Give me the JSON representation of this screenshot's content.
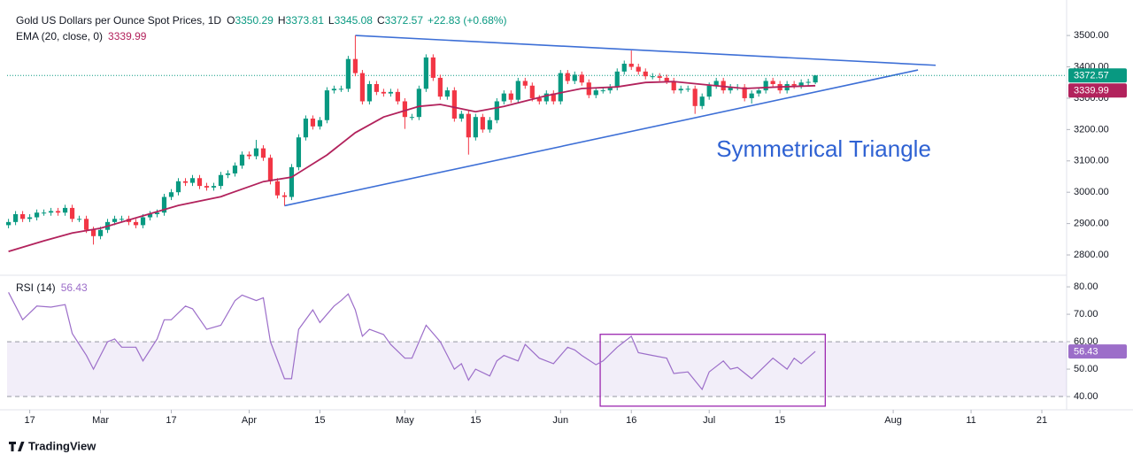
{
  "brand": "TradingView",
  "chart_data": [
    {
      "type": "candlestick",
      "title": "Gold US Dollars per Ounce Spot Prices, 1D",
      "ohlc_prefixes": [
        "O",
        "H",
        "L",
        "C"
      ],
      "change": "+22.83 (+0.68%)",
      "up_color": "#089981",
      "down_color": "#f23645",
      "x": [
        -3,
        -2,
        -1,
        0,
        1,
        2,
        3,
        4,
        5,
        6,
        7,
        8,
        9,
        10,
        11,
        12,
        13,
        14,
        15,
        16,
        17,
        18,
        19,
        20,
        21,
        22,
        23,
        24,
        25,
        26,
        27,
        28,
        29,
        30,
        31,
        32,
        33,
        34,
        35,
        36,
        37,
        38,
        39,
        40,
        41,
        42,
        43,
        44,
        45,
        46,
        47,
        48,
        49,
        50,
        51,
        52,
        53,
        54,
        55,
        56,
        57,
        58,
        59,
        60,
        61,
        62,
        63,
        64,
        65,
        66,
        67,
        68,
        69,
        70,
        71,
        72,
        73,
        74,
        75,
        76,
        77,
        78,
        79,
        80,
        81,
        82,
        83,
        84,
        85,
        86,
        87,
        88,
        89,
        90,
        91,
        92,
        93,
        94,
        95,
        96,
        97,
        98,
        99,
        100,
        101,
        102,
        103,
        104,
        105,
        106,
        107,
        108,
        109,
        110,
        111
      ],
      "open": [
        2895,
        2905,
        2930,
        2915,
        2920,
        2935,
        2935,
        2940,
        2935,
        2950,
        2915,
        2915,
        2880,
        2860,
        2880,
        2905,
        2915,
        2915,
        2905,
        2895,
        2920,
        2930,
        2935,
        2985,
        3000,
        3035,
        3030,
        3045,
        3020,
        3015,
        3020,
        3055,
        3060,
        3085,
        3120,
        3115,
        3140,
        3110,
        3035,
        2990,
        2985,
        3080,
        3175,
        3235,
        3210,
        3230,
        3325,
        3330,
        3330,
        3425,
        3380,
        3290,
        3345,
        3320,
        3315,
        3320,
        3290,
        3240,
        3240,
        3330,
        3430,
        3365,
        3305,
        3325,
        3235,
        3250,
        3175,
        3240,
        3200,
        3230,
        3290,
        3315,
        3295,
        3355,
        3340,
        3300,
        3290,
        3315,
        3290,
        3380,
        3355,
        3375,
        3350,
        3310,
        3325,
        3325,
        3335,
        3385,
        3410,
        3400,
        3385,
        3370,
        3370,
        3365,
        3355,
        3325,
        3330,
        3330,
        3275,
        3305,
        3340,
        3355,
        3325,
        3335,
        3335,
        3300,
        3315,
        3325,
        3355,
        3345,
        3325,
        3345,
        3340,
        3350,
        3350.29
      ],
      "high": [
        2915,
        2940,
        2940,
        2930,
        2945,
        2945,
        2950,
        2950,
        2960,
        2960,
        2925,
        2925,
        2890,
        2890,
        2915,
        2925,
        2925,
        2925,
        2915,
        2930,
        2940,
        2945,
        2995,
        3010,
        3045,
        3045,
        3055,
        3055,
        3030,
        3030,
        3065,
        3070,
        3095,
        3130,
        3130,
        3167,
        3150,
        3120,
        3045,
        3000,
        3090,
        3185,
        3245,
        3245,
        3240,
        3335,
        3340,
        3340,
        3435,
        3500,
        3390,
        3355,
        3355,
        3330,
        3330,
        3330,
        3300,
        3250,
        3340,
        3440,
        3440,
        3375,
        3335,
        3335,
        3260,
        3260,
        3250,
        3250,
        3240,
        3300,
        3325,
        3325,
        3365,
        3365,
        3350,
        3310,
        3325,
        3325,
        3390,
        3390,
        3385,
        3385,
        3360,
        3335,
        3335,
        3345,
        3395,
        3420,
        3452,
        3410,
        3395,
        3380,
        3380,
        3375,
        3365,
        3340,
        3340,
        3340,
        3315,
        3350,
        3365,
        3365,
        3345,
        3345,
        3345,
        3325,
        3335,
        3365,
        3365,
        3355,
        3355,
        3355,
        3360,
        3362,
        3373.81
      ],
      "low": [
        2885,
        2895,
        2905,
        2905,
        2910,
        2925,
        2925,
        2925,
        2925,
        2905,
        2905,
        2870,
        2833,
        2850,
        2870,
        2895,
        2905,
        2895,
        2885,
        2885,
        2910,
        2920,
        2925,
        2975,
        2990,
        3020,
        3020,
        3010,
        3005,
        3005,
        3010,
        3045,
        3050,
        3075,
        3105,
        3105,
        3100,
        3025,
        2980,
        2957,
        2975,
        3070,
        3165,
        3200,
        3200,
        3220,
        3315,
        3320,
        3320,
        3370,
        3280,
        3280,
        3310,
        3305,
        3305,
        3280,
        3202,
        3230,
        3230,
        3320,
        3355,
        3295,
        3295,
        3225,
        3225,
        3120,
        3165,
        3190,
        3190,
        3220,
        3280,
        3285,
        3285,
        3330,
        3290,
        3280,
        3280,
        3280,
        3280,
        3345,
        3345,
        3340,
        3300,
        3300,
        3315,
        3315,
        3325,
        3375,
        3390,
        3375,
        3360,
        3360,
        3355,
        3345,
        3315,
        3315,
        3320,
        3250,
        3265,
        3295,
        3330,
        3315,
        3315,
        3325,
        3290,
        3283,
        3305,
        3315,
        3335,
        3315,
        3315,
        3330,
        3330,
        3340,
        3345.08
      ],
      "close": [
        2905,
        2930,
        2915,
        2920,
        2935,
        2935,
        2940,
        2935,
        2950,
        2915,
        2915,
        2880,
        2860,
        2880,
        2905,
        2915,
        2915,
        2905,
        2895,
        2920,
        2930,
        2935,
        2985,
        3000,
        3035,
        3030,
        3045,
        3020,
        3015,
        3020,
        3055,
        3060,
        3085,
        3120,
        3115,
        3140,
        3110,
        3035,
        2990,
        2985,
        3080,
        3175,
        3235,
        3210,
        3230,
        3325,
        3330,
        3330,
        3425,
        3380,
        3290,
        3345,
        3320,
        3315,
        3320,
        3290,
        3240,
        3240,
        3330,
        3430,
        3365,
        3305,
        3325,
        3235,
        3250,
        3175,
        3240,
        3200,
        3230,
        3290,
        3315,
        3295,
        3355,
        3340,
        3300,
        3290,
        3315,
        3290,
        3380,
        3355,
        3375,
        3350,
        3310,
        3325,
        3325,
        3335,
        3385,
        3410,
        3400,
        3385,
        3370,
        3370,
        3365,
        3355,
        3325,
        3330,
        3330,
        3275,
        3305,
        3340,
        3355,
        3325,
        3335,
        3335,
        3300,
        3315,
        3325,
        3355,
        3345,
        3325,
        3345,
        3340,
        3350,
        3352,
        3372.57
      ],
      "overlay": {
        "name": "EMA (20, close, 0)",
        "color": "#b2225c",
        "x": [
          -3,
          2,
          6,
          10,
          21,
          27,
          33,
          37,
          42,
          46,
          50,
          55,
          58,
          63,
          67,
          73,
          78,
          83,
          87,
          91,
          96,
          101,
          106,
          111
        ],
        "values": [
          2811,
          2845,
          2870,
          2885,
          2958,
          2986,
          3034,
          3048,
          3119,
          3190,
          3240,
          3274,
          3280,
          3257,
          3274,
          3308,
          3331,
          3336,
          3350,
          3353,
          3342,
          3331,
          3336,
          3339.99
        ]
      },
      "xlim": [
        -3.2,
        146.5
      ],
      "ylim": [
        2738,
        3585
      ],
      "yticks": [
        {
          "value": 2800,
          "label": "2800.00"
        },
        {
          "value": 2900,
          "label": "2900.00"
        },
        {
          "value": 3000,
          "label": "3000.00"
        },
        {
          "value": 3100,
          "label": "3100.00"
        },
        {
          "value": 3200,
          "label": "3200.00"
        },
        {
          "value": 3300,
          "label": "3300.00"
        },
        {
          "value": 3400,
          "label": "3400.00"
        },
        {
          "value": 3500,
          "label": "3500.00"
        }
      ],
      "grid": false,
      "annotations": [
        {
          "type": "line",
          "color": "#3d6fd6",
          "x": [
            46,
            128
          ],
          "y": [
            3500,
            3405
          ]
        },
        {
          "type": "line",
          "color": "#3d6fd6",
          "x": [
            36,
            125.5
          ],
          "y": [
            2957,
            3390
          ]
        },
        {
          "type": "text",
          "color": "#2f62d3",
          "text": "Symmetrical Triangle",
          "x": 97,
          "y": 3133
        }
      ]
    },
    {
      "type": "line",
      "series": [
        {
          "name": "RSI (14)",
          "color": "#9c6ec9",
          "x": [
            -3,
            -1,
            1,
            3,
            5,
            6,
            8,
            9,
            11,
            12,
            13,
            15,
            16,
            18,
            19,
            20,
            22,
            23,
            25,
            27,
            29,
            30,
            32,
            33,
            34,
            36,
            37,
            38,
            40,
            41,
            43,
            44,
            45,
            46,
            47,
            48,
            50,
            51,
            53,
            54,
            56,
            58,
            59,
            60,
            61,
            62,
            63,
            65,
            66,
            67,
            69,
            70,
            72,
            74,
            76,
            77,
            78,
            80,
            81,
            83,
            85,
            86,
            88,
            90,
            91,
            93,
            95,
            96,
            98,
            99,
            100,
            102,
            103,
            105,
            107,
            108,
            109,
            111
          ],
          "values": [
            78,
            68,
            73,
            72.6,
            73.5,
            63,
            55,
            50,
            60,
            61,
            58,
            58,
            53,
            61,
            68,
            68,
            73,
            72,
            64.5,
            66,
            75,
            77,
            75,
            76,
            60,
            46.5,
            46.5,
            64.5,
            71.6,
            67,
            73,
            75,
            77.4,
            71.6,
            62,
            64.5,
            62.6,
            59,
            54,
            54,
            66,
            60,
            55,
            50,
            52,
            46,
            50,
            47.5,
            53,
            55,
            53,
            59,
            54,
            52,
            58,
            57,
            55,
            51.6,
            53,
            58,
            62,
            56,
            55,
            54,
            48.4,
            49,
            42.6,
            49,
            53,
            50,
            50.6,
            46.5,
            49,
            54,
            50,
            54,
            52,
            56.43
          ]
        }
      ],
      "band": [
        40,
        60
      ],
      "band_color": "#7e57c2",
      "box": {
        "x": [
          80.6,
          112.4
        ],
        "y": [
          36.5,
          62.7
        ],
        "color": "#9c27b0"
      },
      "xlim": [
        -3.2,
        146.5
      ],
      "ylim": [
        35.5,
        83.9
      ],
      "yticks": [
        {
          "value": 40,
          "label": "40.00"
        },
        {
          "value": 50,
          "label": "50.00"
        },
        {
          "value": 60,
          "label": "60.00"
        },
        {
          "value": 70,
          "label": "70.00"
        },
        {
          "value": 80,
          "label": "80.00"
        }
      ],
      "xticks": [
        {
          "value": 0,
          "label": "17"
        },
        {
          "value": 10,
          "label": "Mar"
        },
        {
          "value": 20,
          "label": "17"
        },
        {
          "value": 31,
          "label": "Apr"
        },
        {
          "value": 41,
          "label": "15"
        },
        {
          "value": 53,
          "label": "May"
        },
        {
          "value": 63,
          "label": "15"
        },
        {
          "value": 75,
          "label": "Jun"
        },
        {
          "value": 85,
          "label": "16"
        },
        {
          "value": 96,
          "label": "Jul"
        },
        {
          "value": 106,
          "label": "15"
        },
        {
          "value": 122,
          "label": "Aug"
        },
        {
          "value": 133,
          "label": "11"
        },
        {
          "value": 143,
          "label": "21"
        }
      ],
      "grid": false
    }
  ]
}
